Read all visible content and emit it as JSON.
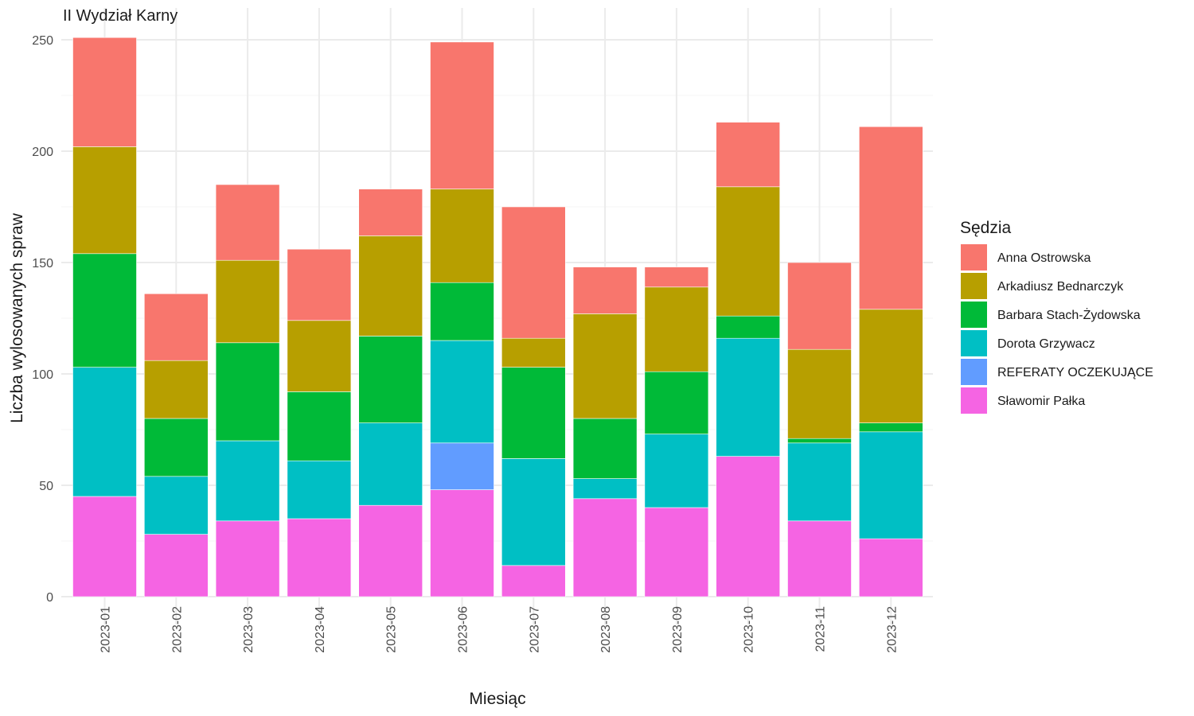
{
  "chart_data": {
    "type": "bar",
    "stacked": true,
    "title": "II Wydział Karny",
    "xlabel": "Miesiąc",
    "ylabel": "Liczba wylosowanych spraw",
    "ylim": [
      0,
      250
    ],
    "yticks": [
      0,
      50,
      100,
      150,
      200,
      250
    ],
    "grid": true,
    "legend_title": "Sędzia",
    "legend_position": "right",
    "categories": [
      "2023-01",
      "2023-02",
      "2023-03",
      "2023-04",
      "2023-05",
      "2023-06",
      "2023-07",
      "2023-08",
      "2023-09",
      "2023-10",
      "2023-11",
      "2023-12"
    ],
    "series": [
      {
        "name": "Anna Ostrowska",
        "color": "#F8766D",
        "values": [
          49,
          30,
          34,
          32,
          21,
          66,
          59,
          21,
          9,
          29,
          39,
          82
        ]
      },
      {
        "name": "Arkadiusz Bednarczyk",
        "color": "#B79F00",
        "values": [
          48,
          26,
          37,
          32,
          45,
          42,
          13,
          47,
          38,
          58,
          40,
          51
        ]
      },
      {
        "name": "Barbara Stach-Żydowska",
        "color": "#00BA38",
        "values": [
          51,
          26,
          44,
          31,
          39,
          26,
          41,
          27,
          28,
          10,
          2,
          4
        ]
      },
      {
        "name": "Dorota Grzywacz",
        "color": "#00BFC4",
        "values": [
          58,
          26,
          36,
          26,
          37,
          46,
          48,
          9,
          33,
          53,
          35,
          48
        ]
      },
      {
        "name": "REFERATY OCZEKUJĄCE",
        "color": "#619CFF",
        "values": [
          0,
          0,
          0,
          0,
          0,
          21,
          0,
          0,
          0,
          0,
          0,
          0
        ]
      },
      {
        "name": "Sławomir Pałka",
        "color": "#F564E3",
        "values": [
          45,
          28,
          34,
          35,
          41,
          48,
          14,
          44,
          40,
          63,
          34,
          26
        ]
      }
    ]
  }
}
